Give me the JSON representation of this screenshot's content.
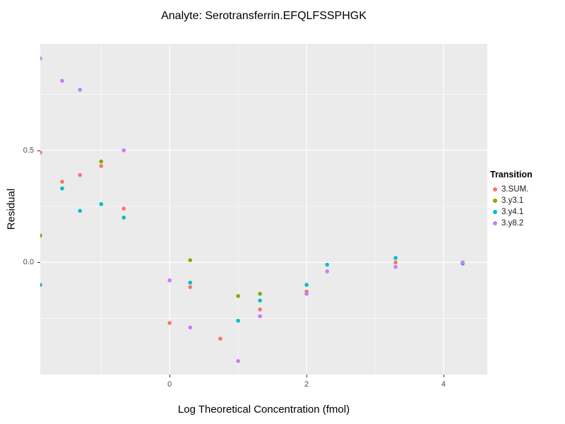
{
  "chart_data": {
    "type": "scatter",
    "title": "Analyte: Serotransferrin.EFQLFSSPHGK",
    "xlabel": "Log Theoretical Concentration (fmol)",
    "ylabel": "Residual",
    "xlim": [
      -1.89,
      4.64
    ],
    "ylim": [
      -0.5,
      0.975
    ],
    "x_major_ticks": [
      0,
      2,
      4
    ],
    "x_tick_labels": [
      "0",
      "2",
      "4"
    ],
    "x_minor_ticks": [
      -1,
      1,
      3
    ],
    "y_major_ticks": [
      0.0,
      0.5
    ],
    "y_tick_labels": [
      "0.0",
      "0.5"
    ],
    "y_minor_ticks": [
      -0.25,
      0.25,
      0.75
    ],
    "grid": true,
    "panel_background": "#EBEBEB",
    "gridline_color": "#FFFFFF",
    "legend_title": "Transition",
    "legend_position": "right",
    "series": [
      {
        "name": "3.SUM.",
        "color": "#F8766D",
        "points": [
          [
            -1.89,
            0.49
          ],
          [
            -1.57,
            0.36
          ],
          [
            -1.31,
            0.39
          ],
          [
            -1.0,
            0.43
          ],
          [
            -0.67,
            0.24
          ],
          [
            0.0,
            -0.27
          ],
          [
            0.3,
            -0.11
          ],
          [
            0.74,
            -0.34
          ],
          [
            1.32,
            -0.21
          ],
          [
            2.0,
            -0.13
          ],
          [
            3.3,
            0.0
          ]
        ]
      },
      {
        "name": "3.y3.1",
        "color": "#7CAE00",
        "points": [
          [
            -1.89,
            0.12
          ],
          [
            -1.0,
            0.45
          ],
          [
            0.3,
            0.01
          ],
          [
            1.0,
            -0.15
          ],
          [
            1.32,
            -0.14
          ]
        ]
      },
      {
        "name": "3.y4.1",
        "color": "#00BFC4",
        "points": [
          [
            -1.89,
            -0.1
          ],
          [
            -1.57,
            0.33
          ],
          [
            -1.31,
            0.23
          ],
          [
            -1.0,
            0.26
          ],
          [
            -0.67,
            0.2
          ],
          [
            0.3,
            -0.09
          ],
          [
            1.0,
            -0.26
          ],
          [
            1.32,
            -0.17
          ],
          [
            2.0,
            -0.1
          ],
          [
            2.3,
            -0.01
          ],
          [
            3.3,
            0.02
          ],
          [
            4.28,
            -0.005
          ]
        ]
      },
      {
        "name": "3.y8.2",
        "color": "#C77CFF",
        "points": [
          [
            -1.89,
            0.91
          ],
          [
            -1.57,
            0.81
          ],
          [
            -1.31,
            0.77
          ],
          [
            -0.67,
            0.5
          ],
          [
            0.0,
            -0.08
          ],
          [
            0.3,
            -0.29
          ],
          [
            1.0,
            -0.44
          ],
          [
            1.32,
            -0.24
          ],
          [
            2.0,
            -0.14
          ],
          [
            2.3,
            -0.04
          ],
          [
            3.3,
            -0.02
          ],
          [
            4.28,
            0.0
          ]
        ]
      }
    ]
  }
}
